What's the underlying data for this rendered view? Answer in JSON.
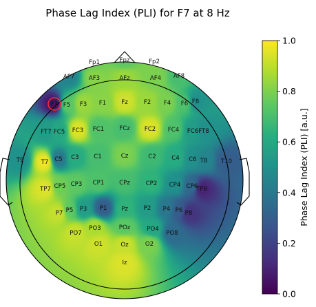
{
  "chart_data": {
    "type": "heatmap",
    "subtype": "topographic-scalp-map",
    "title": "Phase Lag Index (PLI) for F7 at 8 Hz",
    "colormap": "viridis",
    "highlight_electrode": "F7",
    "colorbar": {
      "label": "Phase Lag Index (PLI) [a.u.]",
      "min": 0.0,
      "max": 1.0,
      "ticks": [
        "0.0",
        "0.2",
        "0.4",
        "0.6",
        "0.8",
        "1.0"
      ]
    },
    "electrodes": [
      {
        "name": "Fp1",
        "value": 0.78
      },
      {
        "name": "Fpz",
        "value": 0.75
      },
      {
        "name": "Fp2",
        "value": 0.8
      },
      {
        "name": "AF7",
        "value": 0.45
      },
      {
        "name": "AF3",
        "value": 0.82
      },
      {
        "name": "AFz",
        "value": 0.85
      },
      {
        "name": "AF4",
        "value": 0.8
      },
      {
        "name": "AF8",
        "value": 0.7
      },
      {
        "name": "F7",
        "value": 0.05
      },
      {
        "name": "F5",
        "value": 0.75
      },
      {
        "name": "F3",
        "value": 0.85
      },
      {
        "name": "F1",
        "value": 0.82
      },
      {
        "name": "Fz",
        "value": 0.93
      },
      {
        "name": "F2",
        "value": 0.85
      },
      {
        "name": "F4",
        "value": 0.8
      },
      {
        "name": "F6",
        "value": 0.72
      },
      {
        "name": "F8",
        "value": 0.5
      },
      {
        "name": "FT7",
        "value": 0.55
      },
      {
        "name": "FC5",
        "value": 0.6
      },
      {
        "name": "FC3",
        "value": 0.95
      },
      {
        "name": "FC1",
        "value": 0.72
      },
      {
        "name": "FCz",
        "value": 0.7
      },
      {
        "name": "FC2",
        "value": 0.95
      },
      {
        "name": "FC4",
        "value": 0.72
      },
      {
        "name": "FC6",
        "value": 0.55
      },
      {
        "name": "FT8",
        "value": 0.5
      },
      {
        "name": "T9",
        "value": 0.5
      },
      {
        "name": "T7",
        "value": 0.98
      },
      {
        "name": "C5",
        "value": 0.4
      },
      {
        "name": "C3",
        "value": 0.62
      },
      {
        "name": "C1",
        "value": 0.7
      },
      {
        "name": "Cz",
        "value": 0.8
      },
      {
        "name": "C2",
        "value": 0.68
      },
      {
        "name": "C4",
        "value": 0.62
      },
      {
        "name": "C6",
        "value": 0.5
      },
      {
        "name": "T8",
        "value": 0.45
      },
      {
        "name": "T10",
        "value": 0.3
      },
      {
        "name": "TP7",
        "value": 0.95
      },
      {
        "name": "CP5",
        "value": 0.78
      },
      {
        "name": "CP3",
        "value": 0.75
      },
      {
        "name": "CP1",
        "value": 0.72
      },
      {
        "name": "CPz",
        "value": 0.7
      },
      {
        "name": "CP2",
        "value": 0.65
      },
      {
        "name": "CP4",
        "value": 0.5
      },
      {
        "name": "CP6",
        "value": 0.35
      },
      {
        "name": "TP8",
        "value": 0.1
      },
      {
        "name": "P7",
        "value": 0.92
      },
      {
        "name": "P5",
        "value": 0.75
      },
      {
        "name": "P3",
        "value": 0.55
      },
      {
        "name": "P1",
        "value": 0.3
      },
      {
        "name": "Pz",
        "value": 0.65
      },
      {
        "name": "P2",
        "value": 0.55
      },
      {
        "name": "P4",
        "value": 0.4
      },
      {
        "name": "P6",
        "value": 0.3
      },
      {
        "name": "P8",
        "value": 0.15
      },
      {
        "name": "PO7",
        "value": 0.92
      },
      {
        "name": "PO3",
        "value": 0.88
      },
      {
        "name": "POz",
        "value": 0.75
      },
      {
        "name": "PO4",
        "value": 0.6
      },
      {
        "name": "PO8",
        "value": 0.35
      },
      {
        "name": "O1",
        "value": 0.93
      },
      {
        "name": "Oz",
        "value": 0.92
      },
      {
        "name": "O2",
        "value": 0.8
      },
      {
        "name": "Iz",
        "value": 0.95
      }
    ]
  }
}
